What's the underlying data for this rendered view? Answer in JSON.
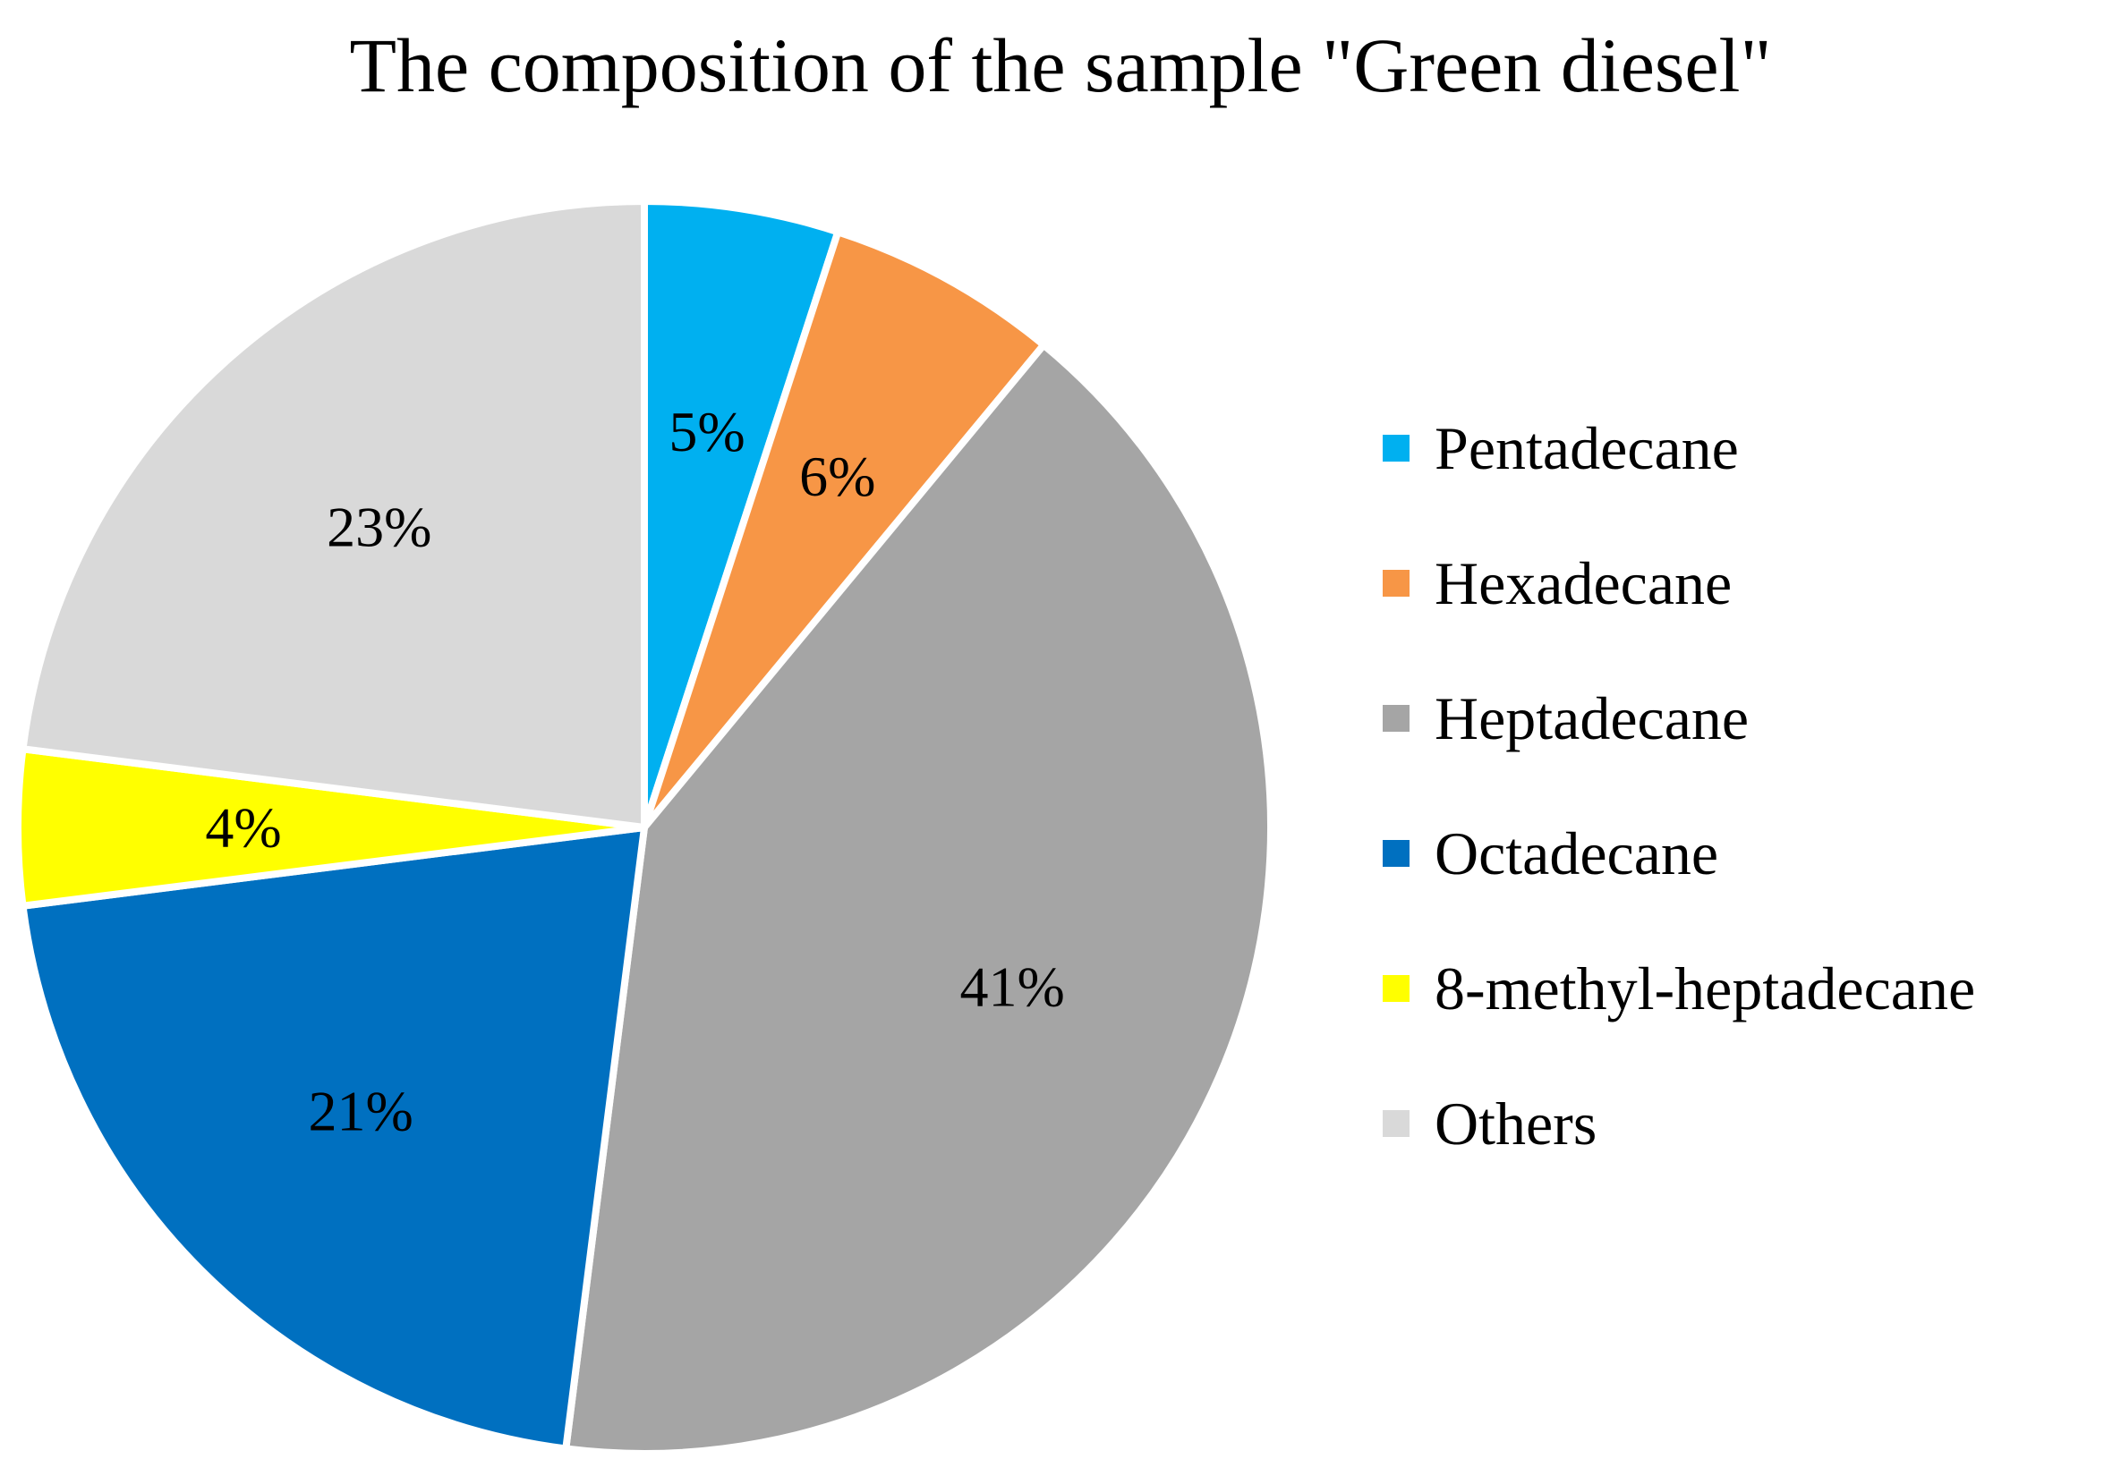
{
  "chart_data": {
    "type": "pie",
    "title": "The composition of the sample \"Green diesel\"",
    "start_angle_deg": 0,
    "direction": "clockwise",
    "legend_position": "right",
    "slices": [
      {
        "name": "Pentadecane",
        "value": 5,
        "label": "5%",
        "color": "#00B0F0"
      },
      {
        "name": "Hexadecane",
        "value": 6,
        "label": "6%",
        "color": "#F79646"
      },
      {
        "name": "Heptadecane",
        "value": 41,
        "label": "41%",
        "color": "#A5A5A5"
      },
      {
        "name": "Octadecane",
        "value": 21,
        "label": "21%",
        "color": "#0070C0"
      },
      {
        "name": "8-methyl-heptadecane",
        "value": 4,
        "label": "4%",
        "color": "#FFFF00"
      },
      {
        "name": "Others",
        "value": 23,
        "label": "23%",
        "color": "#D9D9D9"
      }
    ]
  }
}
